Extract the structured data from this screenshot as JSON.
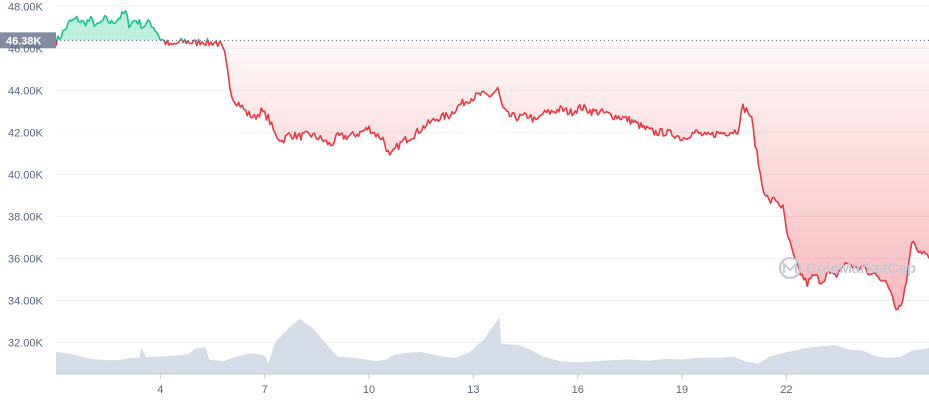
{
  "chart_data": {
    "type": "area",
    "title": "",
    "xlabel": "",
    "ylabel": "",
    "ylim": [
      30500,
      48300
    ],
    "xlim": [
      1,
      26.1
    ],
    "grid": true,
    "reference_value": 46380,
    "reference_label": "46.38K",
    "y_ticks": [
      {
        "value": 48000,
        "label": "48.00K"
      },
      {
        "value": 46000,
        "label": "46.00K"
      },
      {
        "value": 44000,
        "label": "44.00K"
      },
      {
        "value": 42000,
        "label": "42.00K"
      },
      {
        "value": 40000,
        "label": "40.00K"
      },
      {
        "value": 38000,
        "label": "38.00K"
      },
      {
        "value": 36000,
        "label": "36.00K"
      },
      {
        "value": 34000,
        "label": "34.00K"
      },
      {
        "value": 32000,
        "label": "32.00K"
      }
    ],
    "x_ticks": [
      {
        "value": 4,
        "label": "4"
      },
      {
        "value": 7,
        "label": "7"
      },
      {
        "value": 10,
        "label": "10"
      },
      {
        "value": 13,
        "label": "13"
      },
      {
        "value": 16,
        "label": "16"
      },
      {
        "value": 19,
        "label": "19"
      },
      {
        "value": 22,
        "label": "22"
      }
    ],
    "colors": {
      "above": "#16c784",
      "below": "#ea3943",
      "volume": "#cfd6e4",
      "grid": "#eff2f5",
      "tick_text": "#58667e",
      "ref_label_bg": "#858ca2"
    },
    "series": [
      {
        "values": [
          [
            1.0,
            46300
          ],
          [
            1.2,
            46750
          ],
          [
            1.4,
            47250
          ],
          [
            1.6,
            47400
          ],
          [
            1.8,
            47200
          ],
          [
            2.0,
            47350
          ],
          [
            2.2,
            47050
          ],
          [
            2.4,
            47400
          ],
          [
            2.6,
            47200
          ],
          [
            2.8,
            47450
          ],
          [
            3.0,
            47700
          ],
          [
            3.1,
            47150
          ],
          [
            3.3,
            47350
          ],
          [
            3.5,
            47050
          ],
          [
            3.7,
            47250
          ],
          [
            3.9,
            46800
          ],
          [
            4.0,
            46450
          ],
          [
            4.1,
            46350
          ],
          [
            4.3,
            46100
          ],
          [
            4.5,
            46250
          ],
          [
            4.7,
            46350
          ],
          [
            5.0,
            46250
          ],
          [
            5.2,
            46350
          ],
          [
            5.4,
            46250
          ],
          [
            5.6,
            46300
          ],
          [
            5.75,
            46100
          ],
          [
            5.85,
            45700
          ],
          [
            6.0,
            44200
          ],
          [
            6.1,
            43600
          ],
          [
            6.3,
            43300
          ],
          [
            6.5,
            42900
          ],
          [
            6.7,
            42700
          ],
          [
            6.9,
            43000
          ],
          [
            7.1,
            42700
          ],
          [
            7.3,
            41900
          ],
          [
            7.5,
            41600
          ],
          [
            7.7,
            41900
          ],
          [
            8.0,
            41800
          ],
          [
            8.3,
            41900
          ],
          [
            8.6,
            41700
          ],
          [
            8.9,
            41400
          ],
          [
            9.1,
            41800
          ],
          [
            9.4,
            41800
          ],
          [
            9.7,
            41950
          ],
          [
            10.0,
            42200
          ],
          [
            10.2,
            41900
          ],
          [
            10.4,
            41700
          ],
          [
            10.6,
            40800
          ],
          [
            10.8,
            41300
          ],
          [
            11.0,
            41600
          ],
          [
            11.3,
            41900
          ],
          [
            11.6,
            42300
          ],
          [
            11.8,
            42500
          ],
          [
            12.0,
            42700
          ],
          [
            12.3,
            42800
          ],
          [
            12.6,
            43300
          ],
          [
            12.9,
            43600
          ],
          [
            13.2,
            43800
          ],
          [
            13.5,
            43750
          ],
          [
            13.7,
            44050
          ],
          [
            13.85,
            43100
          ],
          [
            14.0,
            42800
          ],
          [
            14.3,
            42700
          ],
          [
            14.6,
            42800
          ],
          [
            14.8,
            42500
          ],
          [
            15.0,
            42900
          ],
          [
            15.2,
            42950
          ],
          [
            15.5,
            43100
          ],
          [
            15.8,
            42950
          ],
          [
            16.1,
            43200
          ],
          [
            16.4,
            43000
          ],
          [
            16.7,
            42950
          ],
          [
            17.0,
            42800
          ],
          [
            17.3,
            42700
          ],
          [
            17.6,
            42500
          ],
          [
            17.9,
            42200
          ],
          [
            18.2,
            42000
          ],
          [
            18.5,
            42000
          ],
          [
            18.8,
            41900
          ],
          [
            19.0,
            41700
          ],
          [
            19.2,
            41900
          ],
          [
            19.4,
            42000
          ],
          [
            19.7,
            41800
          ],
          [
            20.0,
            41950
          ],
          [
            20.3,
            42000
          ],
          [
            20.6,
            42100
          ],
          [
            20.75,
            43200
          ],
          [
            20.9,
            43000
          ],
          [
            21.0,
            42600
          ],
          [
            21.1,
            41500
          ],
          [
            21.3,
            39500
          ],
          [
            21.5,
            38700
          ],
          [
            21.7,
            38800
          ],
          [
            21.9,
            38400
          ],
          [
            22.0,
            37300
          ],
          [
            22.2,
            36100
          ],
          [
            22.4,
            35300
          ],
          [
            22.6,
            34800
          ],
          [
            22.8,
            35200
          ],
          [
            23.0,
            34900
          ],
          [
            23.2,
            35300
          ],
          [
            23.4,
            35100
          ],
          [
            23.6,
            35600
          ],
          [
            23.8,
            35800
          ],
          [
            24.0,
            35500
          ],
          [
            24.2,
            35600
          ],
          [
            24.4,
            35200
          ],
          [
            24.6,
            35300
          ],
          [
            24.8,
            34900
          ],
          [
            25.0,
            34500
          ],
          [
            25.15,
            33700
          ],
          [
            25.3,
            33800
          ],
          [
            25.45,
            34900
          ],
          [
            25.55,
            36300
          ],
          [
            25.65,
            36900
          ],
          [
            25.8,
            36400
          ],
          [
            25.95,
            36300
          ],
          [
            26.1,
            36000
          ]
        ]
      }
    ],
    "volume": [
      [
        1.0,
        0.38
      ],
      [
        1.3,
        0.36
      ],
      [
        1.6,
        0.32
      ],
      [
        1.9,
        0.27
      ],
      [
        2.2,
        0.25
      ],
      [
        2.5,
        0.24
      ],
      [
        2.8,
        0.24
      ],
      [
        3.1,
        0.27
      ],
      [
        3.4,
        0.28
      ],
      [
        3.45,
        0.45
      ],
      [
        3.6,
        0.29
      ],
      [
        3.9,
        0.3
      ],
      [
        4.2,
        0.31
      ],
      [
        4.5,
        0.32
      ],
      [
        4.8,
        0.34
      ],
      [
        5.0,
        0.44
      ],
      [
        5.3,
        0.46
      ],
      [
        5.4,
        0.25
      ],
      [
        5.8,
        0.22
      ],
      [
        6.2,
        0.3
      ],
      [
        6.6,
        0.36
      ],
      [
        7.0,
        0.32
      ],
      [
        7.1,
        0.18
      ],
      [
        7.3,
        0.55
      ],
      [
        7.7,
        0.8
      ],
      [
        8.0,
        0.95
      ],
      [
        8.4,
        0.78
      ],
      [
        8.8,
        0.5
      ],
      [
        9.1,
        0.3
      ],
      [
        9.5,
        0.28
      ],
      [
        9.8,
        0.26
      ],
      [
        10.2,
        0.22
      ],
      [
        10.5,
        0.25
      ],
      [
        10.7,
        0.33
      ],
      [
        11.0,
        0.36
      ],
      [
        11.5,
        0.38
      ],
      [
        11.8,
        0.34
      ],
      [
        12.1,
        0.3
      ],
      [
        12.5,
        0.28
      ],
      [
        12.9,
        0.38
      ],
      [
        13.3,
        0.6
      ],
      [
        13.6,
        0.85
      ],
      [
        13.75,
        0.98
      ],
      [
        13.8,
        0.52
      ],
      [
        14.3,
        0.5
      ],
      [
        14.7,
        0.4
      ],
      [
        15.0,
        0.3
      ],
      [
        15.5,
        0.22
      ],
      [
        16.0,
        0.2
      ],
      [
        16.5,
        0.22
      ],
      [
        17.0,
        0.24
      ],
      [
        17.5,
        0.25
      ],
      [
        18.0,
        0.23
      ],
      [
        18.5,
        0.26
      ],
      [
        19.0,
        0.25
      ],
      [
        19.5,
        0.28
      ],
      [
        20.0,
        0.28
      ],
      [
        20.5,
        0.3
      ],
      [
        20.8,
        0.22
      ],
      [
        21.2,
        0.18
      ],
      [
        21.5,
        0.3
      ],
      [
        21.8,
        0.35
      ],
      [
        22.2,
        0.4
      ],
      [
        22.6,
        0.45
      ],
      [
        23.0,
        0.48
      ],
      [
        23.4,
        0.5
      ],
      [
        23.8,
        0.42
      ],
      [
        24.2,
        0.4
      ],
      [
        24.6,
        0.3
      ],
      [
        25.0,
        0.28
      ],
      [
        25.3,
        0.3
      ],
      [
        25.6,
        0.4
      ],
      [
        26.1,
        0.45
      ]
    ]
  },
  "watermark": {
    "text": "CoinMarketCap",
    "icon": "coinmarketcap-logo-icon"
  }
}
